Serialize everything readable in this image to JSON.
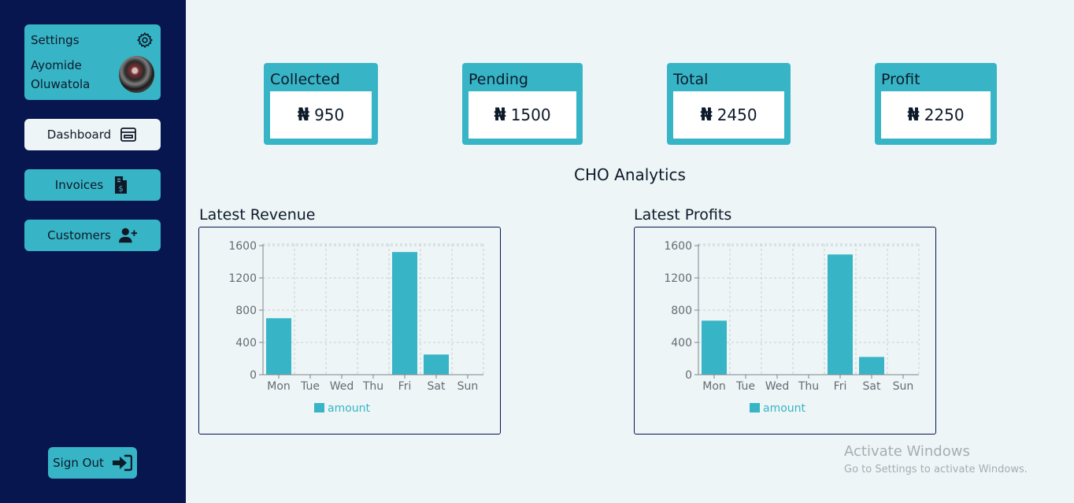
{
  "sidebar": {
    "settings_label": "Settings",
    "user_first": "Ayomide",
    "user_last": "Oluwatola",
    "nav": [
      {
        "label": "Dashboard",
        "icon": "wallet-icon",
        "active": true
      },
      {
        "label": "Invoices",
        "icon": "invoice-dollar-icon",
        "active": false
      },
      {
        "label": "Customers",
        "icon": "user-plus-icon",
        "active": false
      }
    ],
    "signout_label": "Sign Out"
  },
  "cards": [
    {
      "title": "Collected",
      "currency": "₦",
      "value": "950"
    },
    {
      "title": "Pending",
      "currency": "₦",
      "value": "1500"
    },
    {
      "title": "Total",
      "currency": "₦",
      "value": "2450"
    },
    {
      "title": "Profit",
      "currency": "₦",
      "value": "2250"
    }
  ],
  "analytics_title": "CHO Analytics",
  "charts": {
    "revenue_title": "Latest Revenue",
    "profits_title": "Latest Profits"
  },
  "chart_data": [
    {
      "type": "bar",
      "title": "Latest Revenue",
      "categories": [
        "Mon",
        "Tue",
        "Wed",
        "Thu",
        "Fri",
        "Sat",
        "Sun"
      ],
      "series": [
        {
          "name": "amount",
          "values": [
            700,
            0,
            0,
            0,
            1520,
            250,
            0
          ]
        }
      ],
      "yticks": [
        0,
        400,
        800,
        1200,
        1600
      ],
      "ylim": [
        0,
        1600
      ],
      "grid": true,
      "legend": "bottom",
      "color": "#37b5c6"
    },
    {
      "type": "bar",
      "title": "Latest Profits",
      "categories": [
        "Mon",
        "Tue",
        "Wed",
        "Thu",
        "Fri",
        "Sat",
        "Sun"
      ],
      "series": [
        {
          "name": "amount",
          "values": [
            670,
            0,
            0,
            0,
            1490,
            220,
            0
          ]
        }
      ],
      "yticks": [
        0,
        400,
        800,
        1200,
        1600
      ],
      "ylim": [
        0,
        1600
      ],
      "grid": true,
      "legend": "bottom",
      "color": "#37b5c6"
    }
  ],
  "watermark": {
    "title": "Activate Windows",
    "subtitle": "Go to Settings to activate Windows."
  }
}
